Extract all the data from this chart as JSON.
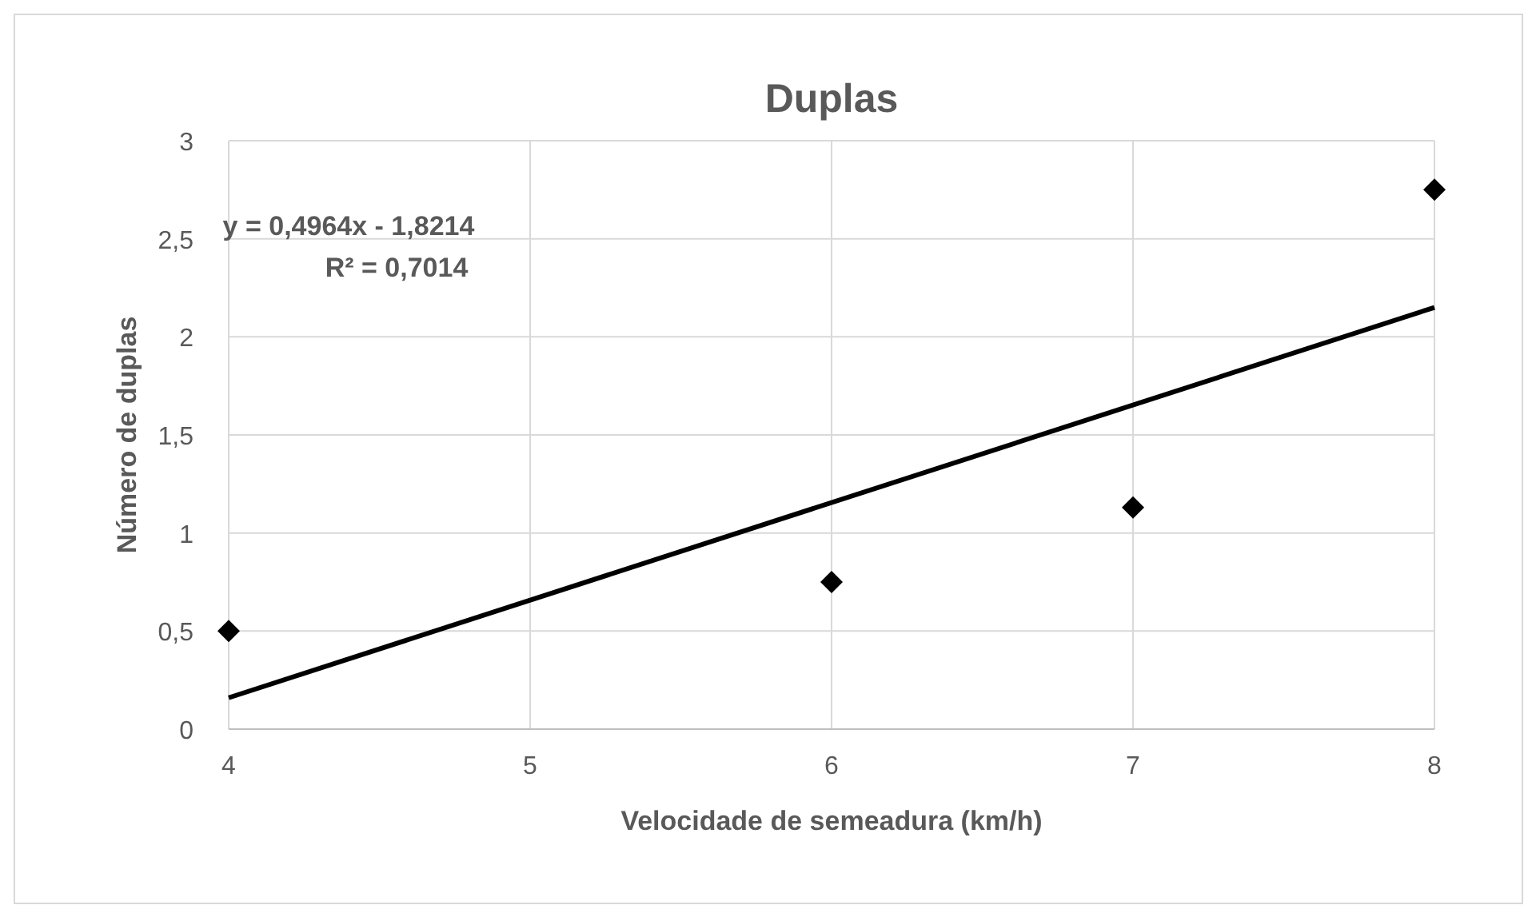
{
  "chart_data": {
    "type": "scatter",
    "title": "Duplas",
    "xlabel": "Velocidade de semeadura (km/h)",
    "ylabel": "Número de duplas",
    "x": [
      4,
      6,
      7,
      8
    ],
    "series": [
      {
        "color": "#000000",
        "values": [
          0.5,
          0.75,
          1.13,
          2.75
        ]
      },
      {
        "type": "line",
        "marker": "none",
        "color": "#000000",
        "x": [
          4,
          8
        ],
        "values": [
          0.16,
          2.15
        ]
      }
    ],
    "xlim": [
      4,
      8
    ],
    "xticks": [
      4,
      5,
      6,
      7,
      8
    ],
    "ylim": [
      0,
      3
    ],
    "yticks": [
      0,
      {
        "value": 0.5,
        "label": "0,5"
      },
      1,
      {
        "value": 1.5,
        "label": "1,5"
      },
      2,
      {
        "value": 2.5,
        "label": "2,5"
      },
      3
    ],
    "grid": true,
    "marker": "diamond",
    "line_style": "solid",
    "annotations": [
      "y = 0,4964x - 1,8214",
      "R² = 0,7014"
    ]
  }
}
